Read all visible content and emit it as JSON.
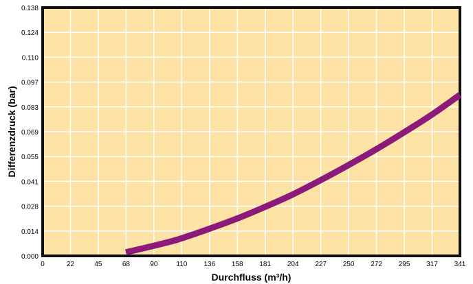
{
  "chart_data": {
    "type": "line",
    "title": "",
    "xlabel": "Durchfluss (m³/h)",
    "ylabel": "Differenzdruck (bar)",
    "x_ticks": [
      "0",
      "22",
      "45",
      "68",
      "90",
      "110",
      "136",
      "158",
      "181",
      "204",
      "227",
      "250",
      "272",
      "295",
      "317",
      "341"
    ],
    "y_ticks": [
      "0.000",
      "0.014",
      "0.028",
      "0.041",
      "0.055",
      "0.069",
      "0.083",
      "0.097",
      "0.110",
      "0.124",
      "0.138"
    ],
    "xlim": [
      0,
      341
    ],
    "ylim": [
      0,
      0.138
    ],
    "grid": true,
    "legend": "none",
    "colors": {
      "plot_background": "#fde2a6",
      "grid": "#ffffff",
      "frame": "#111111",
      "line": "#8b1a7a"
    },
    "series": [
      {
        "x": [
          68,
          90,
          110,
          136,
          158,
          181,
          204,
          227,
          250,
          272,
          295,
          317,
          341
        ],
        "y": [
          0.002,
          0.0055,
          0.009,
          0.015,
          0.0205,
          0.027,
          0.034,
          0.042,
          0.0505,
          0.059,
          0.0685,
          0.078,
          0.0895
        ]
      }
    ]
  }
}
